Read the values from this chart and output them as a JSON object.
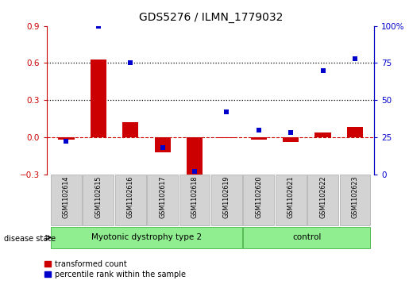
{
  "title": "GDS5276 / ILMN_1779032",
  "samples": [
    "GSM1102614",
    "GSM1102615",
    "GSM1102616",
    "GSM1102617",
    "GSM1102618",
    "GSM1102619",
    "GSM1102620",
    "GSM1102621",
    "GSM1102622",
    "GSM1102623"
  ],
  "transformed_count": [
    -0.02,
    0.63,
    0.12,
    -0.12,
    -0.3,
    -0.01,
    -0.02,
    -0.04,
    0.04,
    0.08
  ],
  "percentile_rank": [
    22,
    100,
    75,
    18,
    2,
    42,
    30,
    28,
    70,
    78
  ],
  "bar_color": "#CC0000",
  "dot_color": "#0000CC",
  "left_ylim": [
    -0.3,
    0.9
  ],
  "left_yticks": [
    -0.3,
    0.0,
    0.3,
    0.6,
    0.9
  ],
  "right_ylim": [
    0,
    100
  ],
  "right_yticks": [
    0,
    25,
    50,
    75,
    100
  ],
  "right_yticklabels": [
    "0",
    "25",
    "50",
    "75",
    "100%"
  ],
  "hline_y": 0.0,
  "dotted_lines": [
    0.3,
    0.6
  ],
  "background_color": "#ffffff",
  "label_red": "transformed count",
  "label_blue": "percentile rank within the sample",
  "group1_label": "Myotonic dystrophy type 2",
  "group2_label": "control",
  "group_color": "#90EE90",
  "group_edge_color": "#55bb55",
  "sample_box_color": "#d3d3d3",
  "sample_box_edge": "#aaaaaa",
  "disease_state_label": "disease state",
  "group1_samples": 6,
  "group2_samples": 4
}
